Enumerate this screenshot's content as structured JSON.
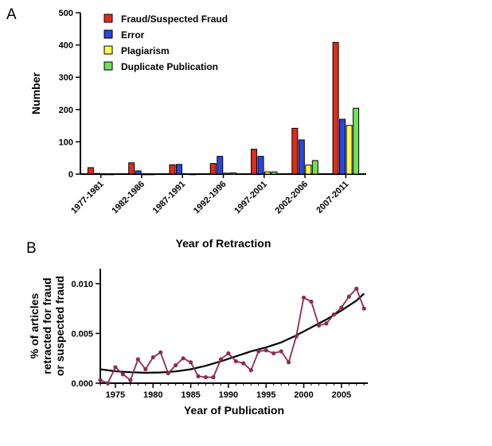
{
  "chart_data": [
    {
      "panel": "A",
      "type": "bar",
      "title": "",
      "xlabel": "Year of Retraction",
      "ylabel": "Number",
      "ylim": [
        0,
        500
      ],
      "yticks": [
        "0",
        "100",
        "200",
        "300",
        "400",
        "500"
      ],
      "categories": [
        "1977-1981",
        "1982-1986",
        "1987-1991",
        "1992-1996",
        "1997-2001",
        "2002-2006",
        "2007-2011"
      ],
      "series": [
        {
          "name": "Fraud/Suspected Fraud",
          "color": "#e02b18",
          "values": [
            20,
            35,
            29,
            33,
            77,
            142,
            408
          ]
        },
        {
          "name": "Error",
          "color": "#2846e0",
          "values": [
            2,
            10,
            30,
            55,
            55,
            106,
            170
          ]
        },
        {
          "name": "Plagiarism",
          "color": "#fcfc50",
          "values": [
            0,
            0,
            1,
            3,
            7,
            28,
            151
          ]
        },
        {
          "name": "Duplicate Publication",
          "color": "#6ee25a",
          "values": [
            0,
            0,
            0,
            4,
            7,
            42,
            204
          ]
        }
      ],
      "legend": "top-left",
      "grid": false
    },
    {
      "panel": "B",
      "type": "line",
      "title": "",
      "xlabel": "Year of Publication",
      "ylabel": "% of articles retracted for fraud or suspected fraud",
      "ylabel_lines": [
        "% of articles",
        "retracted for fraud",
        "or suspected fraud"
      ],
      "xlim": [
        1973,
        2008.5
      ],
      "ylim": [
        0,
        0.0115
      ],
      "xticks": [
        "1975",
        "1980",
        "1985",
        "1990",
        "1995",
        "2000",
        "2005"
      ],
      "yticks": [
        "0.000",
        "0.005",
        "0.010"
      ],
      "series": [
        {
          "name": "",
          "color": "#8e2a55",
          "x": [
            1973,
            1974,
            1975,
            1976,
            1977,
            1978,
            1979,
            1980,
            1981,
            1982,
            1983,
            1984,
            1985,
            1986,
            1987,
            1988,
            1989,
            1990,
            1991,
            1992,
            1993,
            1994,
            1995,
            1996,
            1997,
            1998,
            1999,
            2000,
            2001,
            2002,
            2003,
            2004,
            2005,
            2006,
            2007,
            2008
          ],
          "y": [
            0.0003,
            0.0,
            0.0016,
            0.0009,
            0.0003,
            0.0024,
            0.0014,
            0.0026,
            0.0031,
            0.001,
            0.0018,
            0.0025,
            0.0021,
            0.0007,
            0.0006,
            0.0006,
            0.0024,
            0.003,
            0.0022,
            0.002,
            0.0013,
            0.0032,
            0.0033,
            0.003,
            0.0032,
            0.0021,
            0.0047,
            0.0086,
            0.0082,
            0.0058,
            0.006,
            0.0069,
            0.0076,
            0.0087,
            0.0095,
            0.0075
          ]
        }
      ],
      "trend": {
        "color": "#000000",
        "x": [
          1973,
          1975,
          1977,
          1979,
          1981,
          1983,
          1985,
          1987,
          1989,
          1991,
          1993,
          1995,
          1997,
          1999,
          2001,
          2003,
          2005,
          2007,
          2008
        ],
        "y": [
          0.0014,
          0.0012,
          0.0011,
          0.00105,
          0.00108,
          0.00118,
          0.0014,
          0.00175,
          0.0022,
          0.0027,
          0.0032,
          0.0036,
          0.0041,
          0.0048,
          0.0056,
          0.0064,
          0.0073,
          0.0083,
          0.009
        ]
      },
      "grid": false
    }
  ]
}
